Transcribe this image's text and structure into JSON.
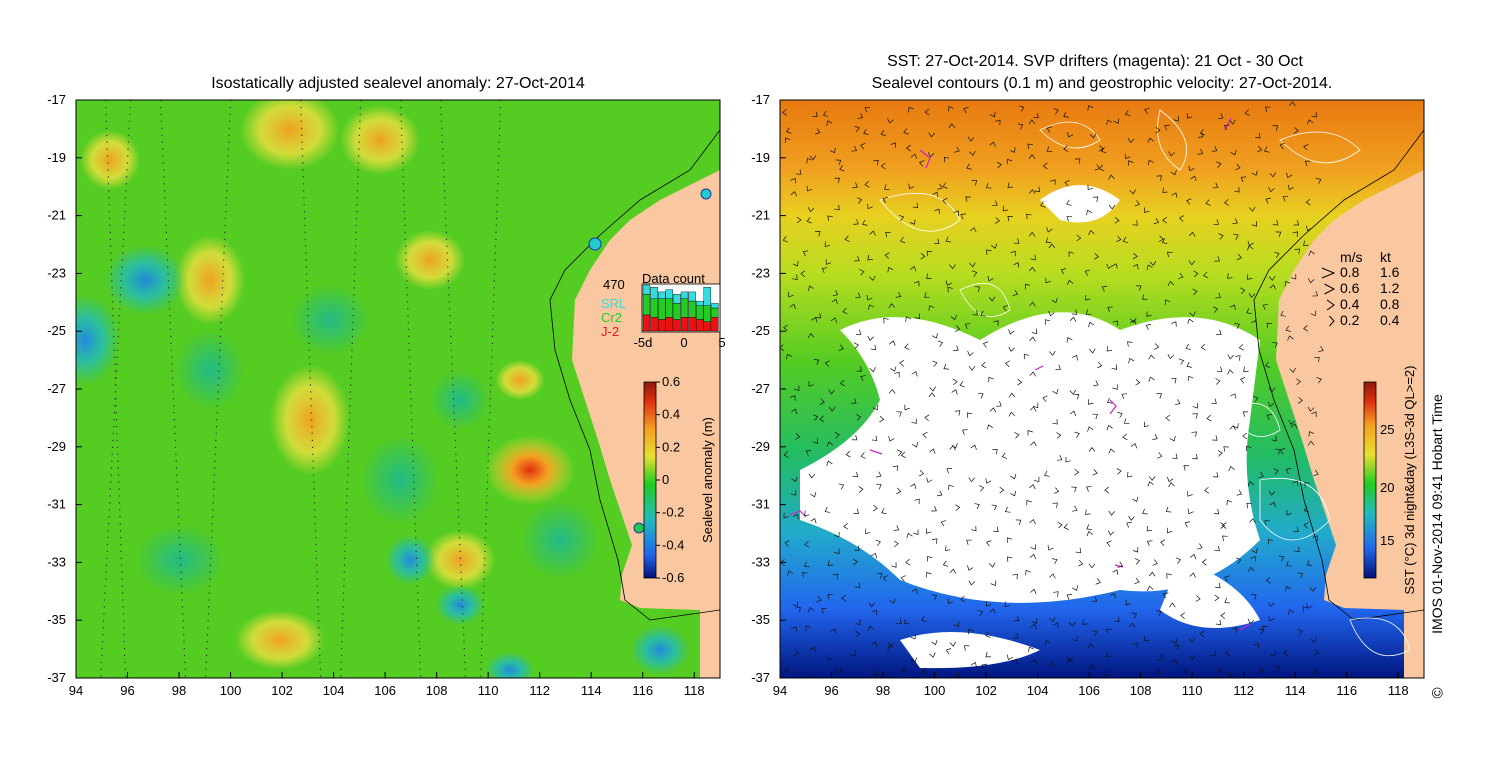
{
  "left_panel": {
    "title": "Isostatically adjusted sealevel anomaly: 27-Oct-2014",
    "lon_ticks": [
      "94",
      "96",
      "98",
      "100",
      "102",
      "104",
      "106",
      "108",
      "110",
      "112",
      "114",
      "116",
      "118"
    ],
    "lat_ticks": [
      "-17",
      "-19",
      "-21",
      "-23",
      "-25",
      "-27",
      "-29",
      "-31",
      "-33",
      "-35",
      "-37"
    ],
    "data_count": {
      "title": "Data count",
      "max_label": "470",
      "series": [
        {
          "name": "SRL",
          "color": "#33dddd"
        },
        {
          "name": "Cr2",
          "color": "#22cc22"
        },
        {
          "name": "J-2",
          "color": "#ee1111"
        }
      ],
      "x_ticks": [
        "-5d",
        "0",
        "5"
      ],
      "bars": [
        {
          "srl": 0.2,
          "cr2": 0.45,
          "j2": 0.35
        },
        {
          "srl": 0.25,
          "cr2": 0.4,
          "j2": 0.3
        },
        {
          "srl": 0.15,
          "cr2": 0.45,
          "j2": 0.25
        },
        {
          "srl": 0.2,
          "cr2": 0.4,
          "j2": 0.3
        },
        {
          "srl": 0.2,
          "cr2": 0.35,
          "j2": 0.25
        },
        {
          "srl": 0.15,
          "cr2": 0.4,
          "j2": 0.3
        },
        {
          "srl": 0.2,
          "cr2": 0.35,
          "j2": 0.3
        },
        {
          "srl": 0.1,
          "cr2": 0.3,
          "j2": 0.25
        },
        {
          "srl": 0.4,
          "cr2": 0.35,
          "j2": 0.2
        },
        {
          "srl": 0.1,
          "cr2": 0.2,
          "j2": 0.3
        }
      ]
    },
    "colorbar": {
      "label": "Sealevel anomaly (m)",
      "ticks": [
        "0.6",
        "0.4",
        "0.2",
        "0",
        "-0.2",
        "-0.4",
        "-0.6"
      ],
      "stops": [
        "#8b1a0a",
        "#e03010",
        "#f5a020",
        "#e8e030",
        "#22cc22",
        "#22bbbb",
        "#2266ee",
        "#001077"
      ]
    }
  },
  "right_panel": {
    "title_line1": "SST: 27-Oct-2014. SVP drifters (magenta): 21 Oct - 30 Oct",
    "title_line2": "Sealevel contours (0.1 m) and geostrophic velocity: 27-Oct-2014.",
    "lon_ticks": [
      "94",
      "96",
      "98",
      "100",
      "102",
      "104",
      "106",
      "108",
      "110",
      "112",
      "114",
      "116",
      "118"
    ],
    "lat_ticks": [
      "-17",
      "-19",
      "-21",
      "-23",
      "-25",
      "-27",
      "-29",
      "-31",
      "-33",
      "-35",
      "-37"
    ],
    "velocity_legend": {
      "header_ms": "m/s",
      "header_kt": "kt",
      "rows": [
        {
          "ms": "0.8",
          "kt": "1.6"
        },
        {
          "ms": "0.6",
          "kt": "1.2"
        },
        {
          "ms": "0.4",
          "kt": "0.8"
        },
        {
          "ms": "0.2",
          "kt": "0.4"
        }
      ]
    },
    "colorbar": {
      "label": "SST (°C) 3d night&day (L3S-3d QL>=2)",
      "ticks": [
        "25",
        "20",
        "15"
      ],
      "stops": [
        "#8b1a0a",
        "#e03010",
        "#f5a020",
        "#e8e030",
        "#22cc22",
        "#22bbbb",
        "#2266ee",
        "#001077"
      ]
    }
  },
  "footer": {
    "credit": "IMOS 01-Nov-2014 09:41 Hobart Time",
    "copyright_symbol": "©"
  },
  "colors": {
    "land": "#fac8a0",
    "drifters": "#cc22cc",
    "contours": "#ffffff"
  }
}
